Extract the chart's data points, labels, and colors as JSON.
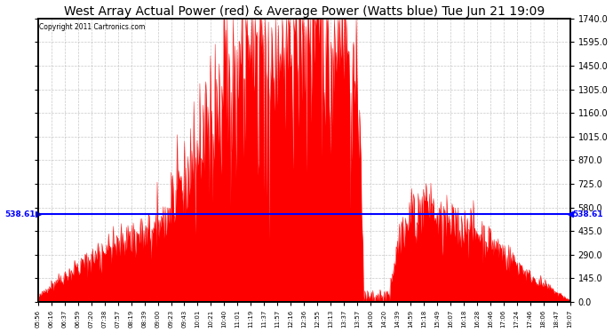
{
  "title": "West Array Actual Power (red) & Average Power (Watts blue) Tue Jun 21 19:09",
  "copyright": "Copyright 2011 Cartronics.com",
  "avg_power": 538.61,
  "ymin": 0.0,
  "ymax": 1740.0,
  "yticks": [
    0.0,
    145.0,
    290.0,
    435.0,
    580.0,
    725.0,
    870.0,
    1015.0,
    1160.0,
    1305.0,
    1450.0,
    1595.0,
    1740.0
  ],
  "x_labels": [
    "05:56",
    "06:16",
    "06:37",
    "06:59",
    "07:20",
    "07:38",
    "07:57",
    "08:19",
    "08:39",
    "09:00",
    "09:23",
    "09:43",
    "10:01",
    "10:21",
    "10:40",
    "11:01",
    "11:19",
    "11:37",
    "11:57",
    "12:16",
    "12:36",
    "12:55",
    "13:13",
    "13:37",
    "13:57",
    "14:00",
    "14:20",
    "14:39",
    "14:59",
    "15:18",
    "15:49",
    "16:07",
    "16:18",
    "16:28",
    "16:46",
    "17:06",
    "17:24",
    "17:46",
    "18:06",
    "18:47",
    "19:07"
  ],
  "bar_color": "#FF0000",
  "line_color": "#0000FF",
  "bg_color": "#FFFFFF",
  "grid_color": "#AAAAAA",
  "title_fontsize": 10,
  "tick_fontsize": 7,
  "xlabel_fontsize": 5.5,
  "n_points": 800
}
